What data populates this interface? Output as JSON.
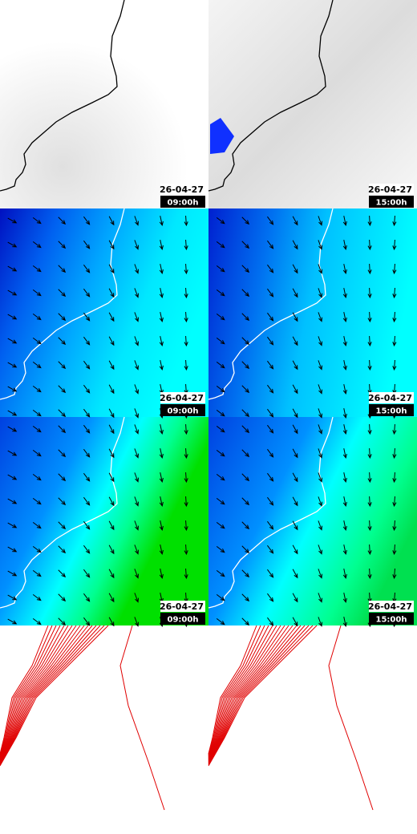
{
  "panels": [
    {
      "date": "26-04-27",
      "time": "09:00h"
    },
    {
      "date": "26-04-27",
      "time": "15:00h"
    },
    {
      "date": "26-04-27",
      "time": "09:00h"
    },
    {
      "date": "26-04-27",
      "time": "15:00h"
    },
    {
      "date": "26-04-27",
      "time": "09:00h"
    },
    {
      "date": "26-04-27",
      "time": "15:00h"
    }
  ]
}
